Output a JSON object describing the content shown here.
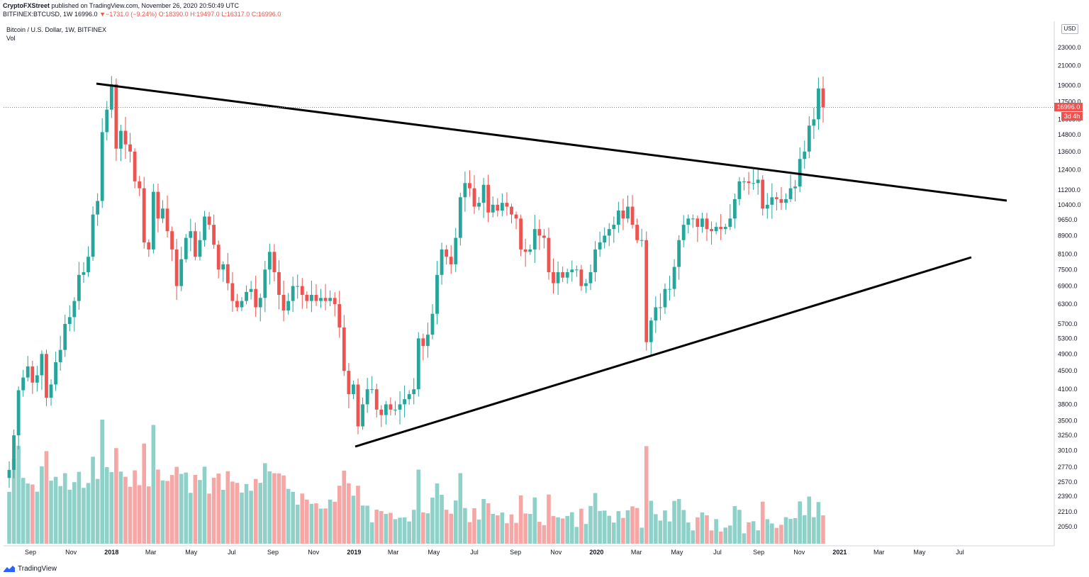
{
  "header": {
    "publisher": "CryptoFXStreet",
    "published_text": "published on TradingView.com, November 26, 2020 20:50:49 UTC",
    "symbol": "BITFINEX:BTCUSD, 1W",
    "last": "16996.0",
    "change_arrow": "▼",
    "change": "−1731.0 (−9.24%)",
    "open": "O:18390.0",
    "high": "H:19497.0",
    "low": "L:16317.0",
    "close": "C:16996.0"
  },
  "legend": {
    "title": "Bitcoin / U.S. Dollar, 1W, BITFINEX",
    "volume": "Vol"
  },
  "price_axis": {
    "currency": "USD",
    "current_price": "16996.0",
    "countdown": "3d 4h"
  },
  "footer": {
    "brand": "TradingView"
  },
  "colors": {
    "up": "#26a69a",
    "down": "#ef5350",
    "up_vol": "#8fd0c8",
    "down_vol": "#f5a6a5",
    "trendline": "#000000"
  },
  "chart_data": {
    "type": "candlestick",
    "scale": "log",
    "ylim": [
      1950,
      25500
    ],
    "y_ticks": [
      2050,
      2210,
      2390,
      2570,
      2770,
      3010,
      3250,
      3500,
      3800,
      4100,
      4500,
      4900,
      5300,
      5700,
      6300,
      6900,
      7500,
      8100,
      8900,
      9650,
      10400,
      11200,
      12400,
      13600,
      14800,
      16000,
      17500,
      19000,
      21000,
      23000
    ],
    "y_tick_labels": [
      "2050.0",
      "2210.0",
      "2390.0",
      "2570.0",
      "2770.0",
      "3010.0",
      "3250.0",
      "3500.0",
      "3800.0",
      "4100.0",
      "4500.0",
      "4900.0",
      "5300.0",
      "5700.0",
      "6300.0",
      "6900.0",
      "7500.0",
      "8100.0",
      "8900.0",
      "9650.0",
      "10400.0",
      "11200.0",
      "12400.0",
      "13600.0",
      "14800.0",
      "16000.0",
      "17500.0",
      "19000.0",
      "21000.0",
      "23000.0"
    ],
    "x_start": "2017-07-31",
    "x_ticks": [
      {
        "label": "Sep",
        "date": "2017-09-01",
        "bold": false
      },
      {
        "label": "Nov",
        "date": "2017-11-01",
        "bold": false
      },
      {
        "label": "2018",
        "date": "2018-01-01",
        "bold": true
      },
      {
        "label": "Mar",
        "date": "2018-03-01",
        "bold": false
      },
      {
        "label": "May",
        "date": "2018-05-01",
        "bold": false
      },
      {
        "label": "Jul",
        "date": "2018-07-01",
        "bold": false
      },
      {
        "label": "Sep",
        "date": "2018-09-01",
        "bold": false
      },
      {
        "label": "Nov",
        "date": "2018-11-01",
        "bold": false
      },
      {
        "label": "2019",
        "date": "2019-01-01",
        "bold": true
      },
      {
        "label": "Mar",
        "date": "2019-03-01",
        "bold": false
      },
      {
        "label": "May",
        "date": "2019-05-01",
        "bold": false
      },
      {
        "label": "Jul",
        "date": "2019-07-01",
        "bold": false
      },
      {
        "label": "Sep",
        "date": "2019-09-01",
        "bold": false
      },
      {
        "label": "Nov",
        "date": "2019-11-01",
        "bold": false
      },
      {
        "label": "2020",
        "date": "2020-01-01",
        "bold": true
      },
      {
        "label": "Mar",
        "date": "2020-03-01",
        "bold": false
      },
      {
        "label": "May",
        "date": "2020-05-01",
        "bold": false
      },
      {
        "label": "Jul",
        "date": "2020-07-01",
        "bold": false
      },
      {
        "label": "Sep",
        "date": "2020-09-01",
        "bold": false
      },
      {
        "label": "Nov",
        "date": "2020-11-01",
        "bold": false
      },
      {
        "label": "2021",
        "date": "2021-01-01",
        "bold": true
      },
      {
        "label": "Mar",
        "date": "2021-03-01",
        "bold": false
      },
      {
        "label": "May",
        "date": "2021-05-01",
        "bold": false
      },
      {
        "label": "Jul",
        "date": "2021-07-01",
        "bold": false
      }
    ],
    "closes": [
      2730,
      3250,
      4080,
      4350,
      4600,
      4240,
      4400,
      4900,
      3930,
      4200,
      4700,
      5000,
      5700,
      5900,
      6400,
      7300,
      7400,
      8000,
      9900,
      10600,
      15000,
      16800,
      19100,
      13800,
      15100,
      14100,
      13600,
      11700,
      11300,
      8600,
      8300,
      11100,
      9700,
      10200,
      9100,
      8300,
      6900,
      7900,
      8800,
      9100,
      8000,
      8700,
      9800,
      9400,
      8500,
      7500,
      7700,
      7000,
      6400,
      6200,
      6400,
      6700,
      6800,
      6200,
      6500,
      7500,
      8200,
      7400,
      6600,
      6100,
      6400,
      6900,
      6900,
      6600,
      6400,
      6600,
      6400,
      6500,
      6400,
      6500,
      6300,
      5600,
      4500,
      4000,
      4200,
      3400,
      3800,
      4100,
      4100,
      3700,
      3600,
      3800,
      3700,
      3700,
      3800,
      3900,
      4000,
      4100,
      5300,
      5100,
      5400,
      6000,
      7300,
      8300,
      8000,
      7700,
      8800,
      10800,
      11600,
      11300,
      10300,
      10500,
      11500,
      10000,
      10400,
      10100,
      10500,
      10300,
      9900,
      9700,
      8300,
      8200,
      8300,
      9200,
      8900,
      8800,
      7400,
      7000,
      7400,
      7200,
      7400,
      7500,
      7500,
      6900,
      7000,
      7400,
      8300,
      8600,
      8900,
      9200,
      9400,
      10100,
      9700,
      10300,
      9400,
      8700,
      8700,
      5200,
      5800,
      6200,
      6200,
      6800,
      6800,
      7600,
      8700,
      9400,
      9700,
      9700,
      9300,
      9700,
      9200,
      9100,
      9300,
      9200,
      9300,
      9700,
      10700,
      11700,
      11700,
      11600,
      11600,
      11800,
      10200,
      10400,
      10800,
      10700,
      10500,
      10700,
      11300,
      11400,
      13100,
      13600,
      15500,
      16000,
      18700,
      17000
    ]
  }
}
